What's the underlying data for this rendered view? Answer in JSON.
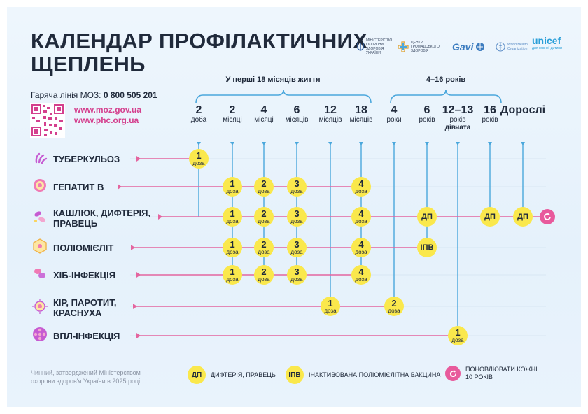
{
  "title": {
    "line1": "КАЛЕНДАР ПРОФІЛАКТИЧНИХ",
    "line2": "ЩЕПЛЕНЬ"
  },
  "hotline": {
    "label": "Гаряча лінія МОЗ:",
    "number": "0 800 505 201"
  },
  "links": [
    "www.moz.gov.ua",
    "www.phc.org.ua"
  ],
  "logos": {
    "ministry": "МІНІСТЕРСТВО ОХОРОНИ ЗДОРОВ'Я УКРАЇНИ",
    "phc": "ЦЕНТР ГРОМАДСЬКОГО ЗДОРОВ'Я",
    "gavi": "Gavi",
    "who": "World Health Organization",
    "unicef": "unicef",
    "unicef_sub": "для кожної дитини"
  },
  "groups": [
    {
      "label": "У перші 18 місяців життя"
    },
    {
      "label": "4–16 років"
    }
  ],
  "ages": [
    {
      "num": "2",
      "unit": "доба",
      "sub": ""
    },
    {
      "num": "2",
      "unit": "місяці",
      "sub": ""
    },
    {
      "num": "4",
      "unit": "місяці",
      "sub": ""
    },
    {
      "num": "6",
      "unit": "місяців",
      "sub": ""
    },
    {
      "num": "12",
      "unit": "місяців",
      "sub": ""
    },
    {
      "num": "18",
      "unit": "місяців",
      "sub": ""
    },
    {
      "num": "4",
      "unit": "роки",
      "sub": ""
    },
    {
      "num": "6",
      "unit": "років",
      "sub": ""
    },
    {
      "num": "12–13",
      "unit": "років",
      "sub": "дівчата"
    },
    {
      "num": "16",
      "unit": "років",
      "sub": ""
    },
    {
      "num": "Дорослі",
      "unit": "",
      "sub": ""
    }
  ],
  "diseases": [
    {
      "name": "ТУБЕРКУЛЬОЗ",
      "icon": "tuberculosis-icon",
      "doses": [
        {
          "age": 0,
          "text": "1",
          "sub": "доза"
        }
      ]
    },
    {
      "name": "ГЕПАТИТ В",
      "icon": "hepatitis-b-icon",
      "doses": [
        {
          "age": 1,
          "text": "1",
          "sub": "доза"
        },
        {
          "age": 2,
          "text": "2",
          "sub": "доза"
        },
        {
          "age": 3,
          "text": "3",
          "sub": "доза"
        },
        {
          "age": 5,
          "text": "4",
          "sub": "доза"
        }
      ]
    },
    {
      "name": "КАШЛЮК, ДИФТЕРІЯ, ПРАВЕЦЬ",
      "icon": "pertussis-icon",
      "renew": true,
      "doses": [
        {
          "age": 1,
          "text": "1",
          "sub": "доза"
        },
        {
          "age": 2,
          "text": "2",
          "sub": "доза"
        },
        {
          "age": 3,
          "text": "3",
          "sub": "доза"
        },
        {
          "age": 5,
          "text": "4",
          "sub": "доза"
        },
        {
          "age": 7,
          "text": "ДП",
          "sub": ""
        },
        {
          "age": 9,
          "text": "ДП",
          "sub": ""
        },
        {
          "age": 10,
          "text": "ДП",
          "sub": ""
        }
      ]
    },
    {
      "name": "ПОЛІОМІЄЛІТ",
      "icon": "polio-icon",
      "doses": [
        {
          "age": 1,
          "text": "1",
          "sub": "доза"
        },
        {
          "age": 2,
          "text": "2",
          "sub": "доза"
        },
        {
          "age": 3,
          "text": "3",
          "sub": "доза"
        },
        {
          "age": 5,
          "text": "4",
          "sub": "доза"
        },
        {
          "age": 7,
          "text": "ІПВ",
          "sub": ""
        }
      ]
    },
    {
      "name": "ХІБ-ІНФЕКЦІЯ",
      "icon": "hib-icon",
      "doses": [
        {
          "age": 1,
          "text": "1",
          "sub": "доза"
        },
        {
          "age": 2,
          "text": "2",
          "sub": "доза"
        },
        {
          "age": 3,
          "text": "3",
          "sub": "доза"
        },
        {
          "age": 5,
          "text": "4",
          "sub": "доза"
        }
      ]
    },
    {
      "name": "КІР, ПАРОТИТ, КРАСНУХА",
      "icon": "measles-icon",
      "doses": [
        {
          "age": 4,
          "text": "1",
          "sub": "доза"
        },
        {
          "age": 6,
          "text": "2",
          "sub": "доза"
        }
      ]
    },
    {
      "name": "ВПЛ-ІНФЕКЦІЯ",
      "icon": "hpv-icon",
      "doses": [
        {
          "age": 8,
          "text": "1",
          "sub": "доза"
        }
      ]
    }
  ],
  "footer": {
    "note": "Чинний, затверджений Міністерством охорони здоров'я України в 2025 році",
    "legend": [
      {
        "chip": "ДП",
        "text": "ДИФТЕРІЯ, ПРАВЕЦЬ"
      },
      {
        "chip": "ІПВ",
        "text": "ІНАКТИВОВАНА ПОЛІОМІЄЛІТНА ВАКЦИНА"
      },
      {
        "chip": "",
        "text": "ПОНОВЛЮВАТИ КОЖНІ 10 РОКІВ"
      }
    ]
  },
  "colors": {
    "title": "#202a3b",
    "accent_pink": "#d43f8d",
    "dose_yellow": "#fae84c",
    "timeline_blue": "#4aa7dc",
    "row_line": "#e4659f",
    "renew": "#e85a9c"
  }
}
